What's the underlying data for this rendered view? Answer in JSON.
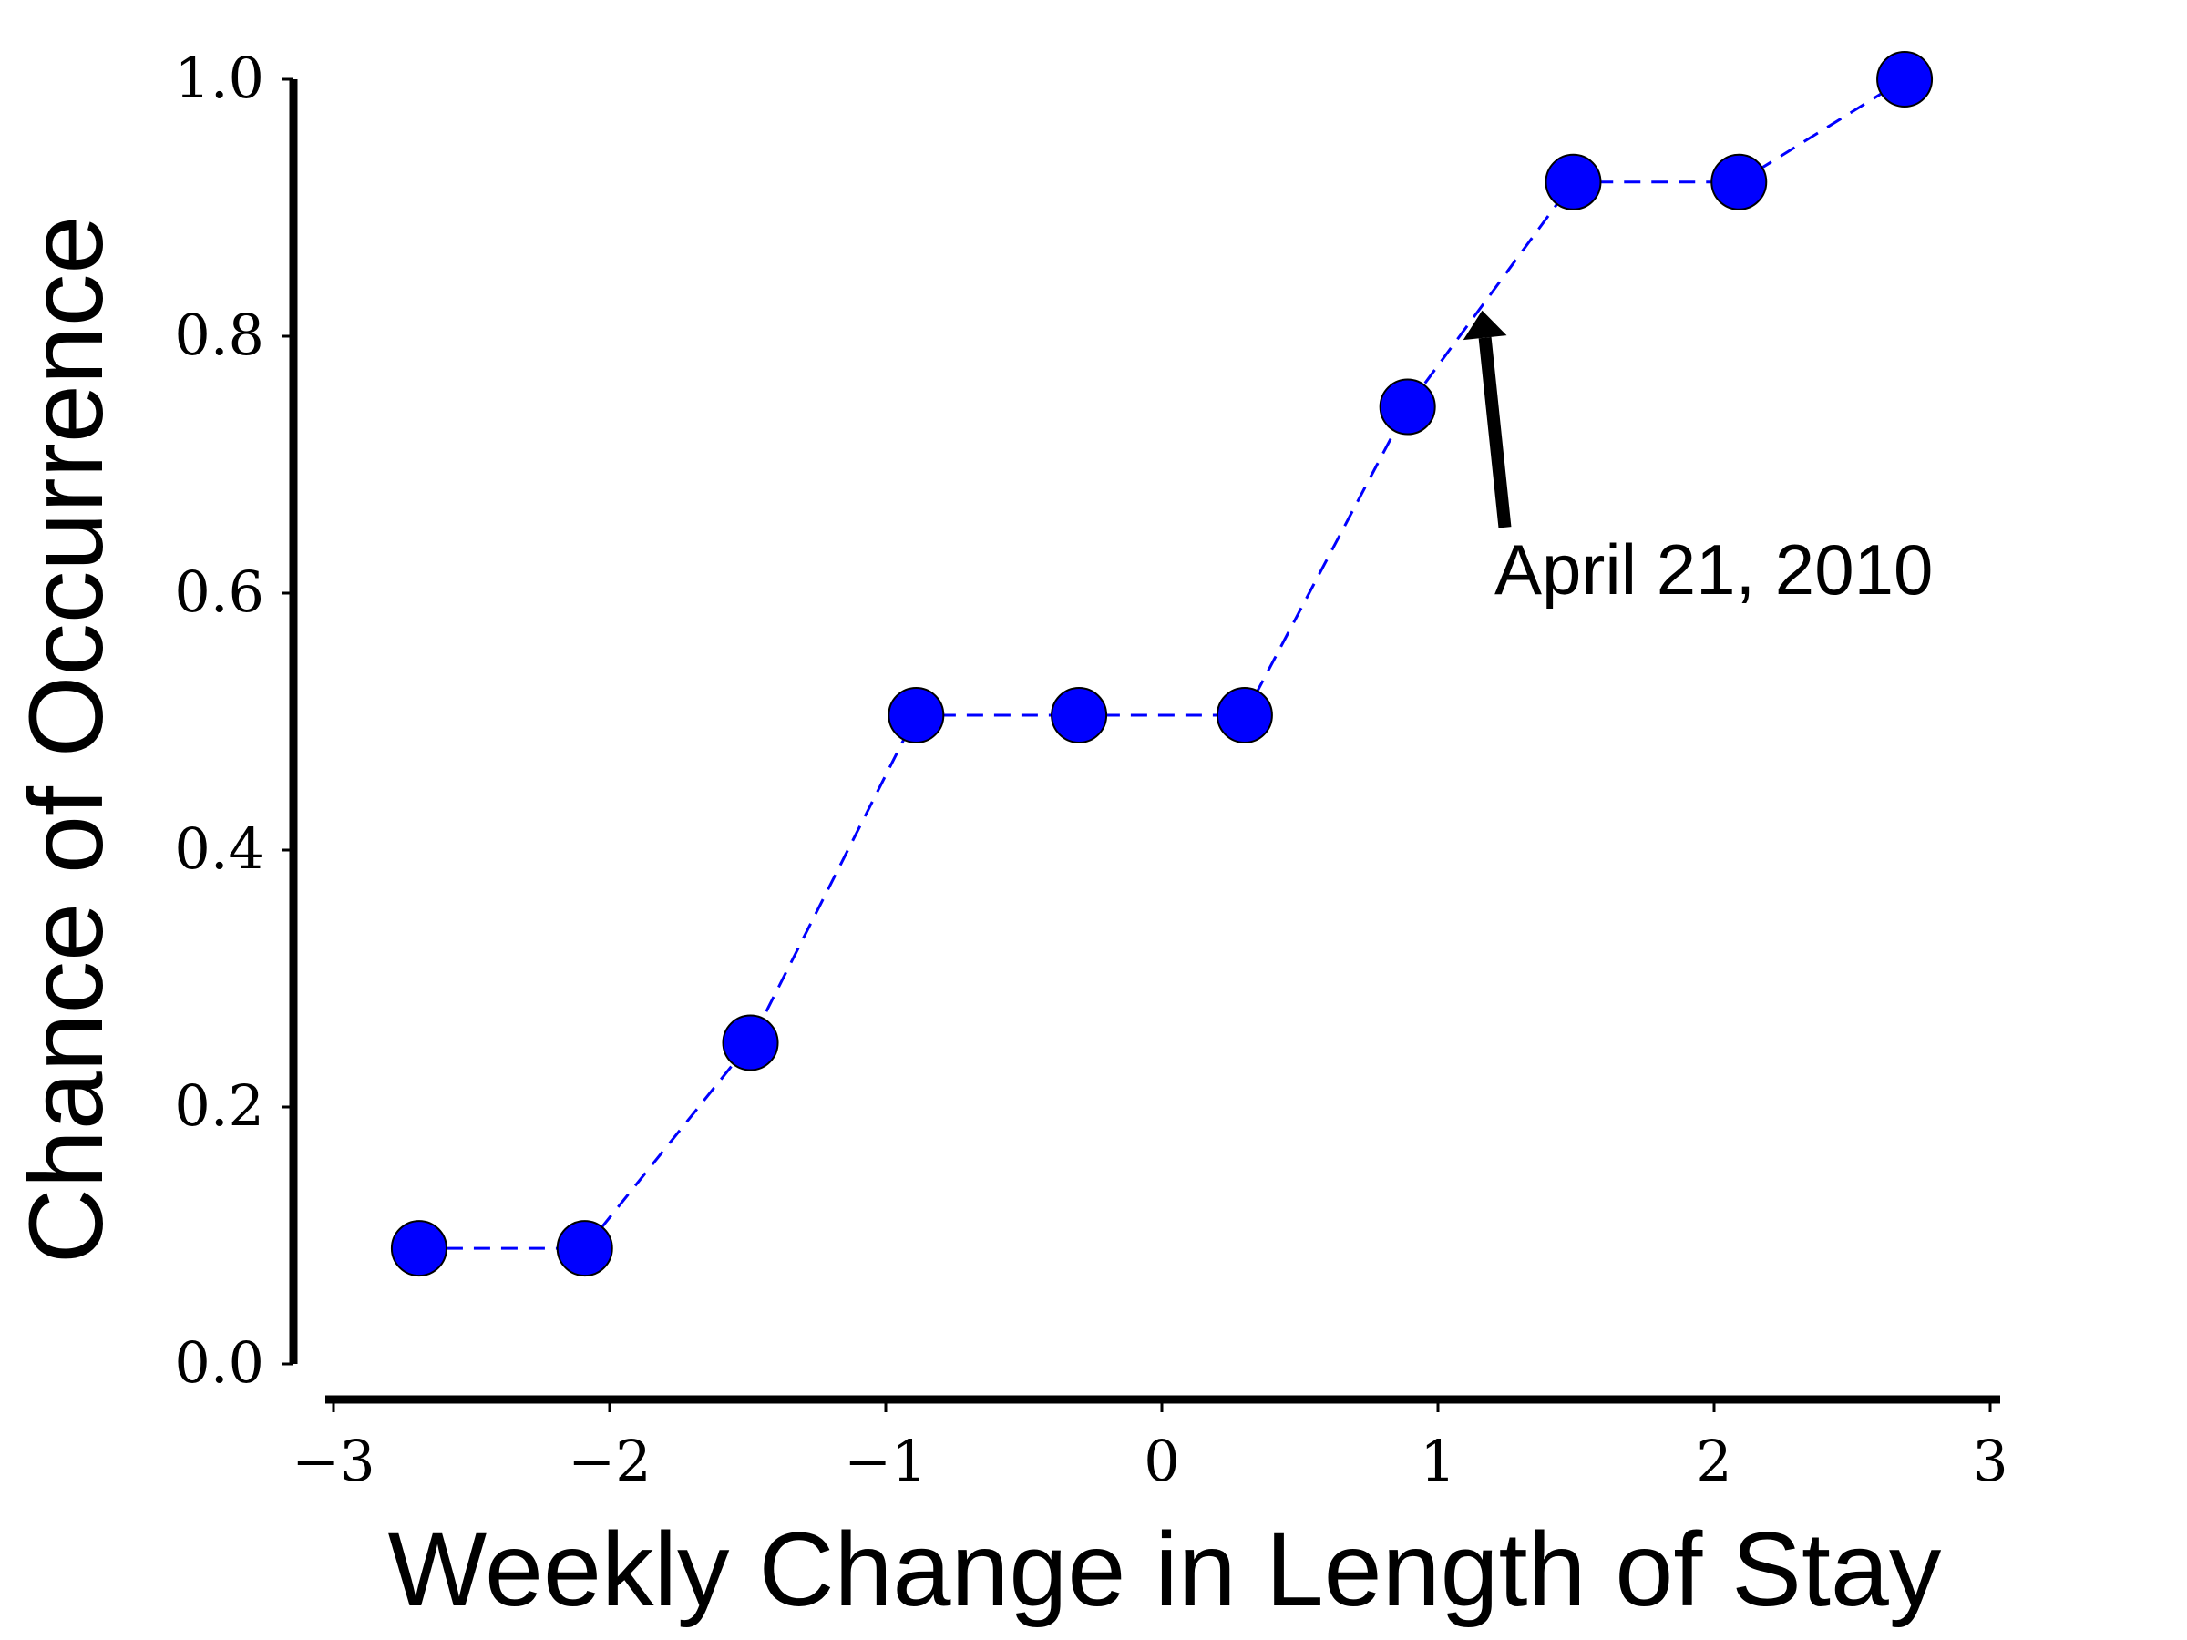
{
  "chart_data": {
    "type": "line",
    "title": "",
    "xlabel": "Weekly Change in Length of Stay",
    "ylabel": "Chance of Occurrence",
    "xlim": [
      -3,
      3
    ],
    "ylim": [
      0,
      1
    ],
    "xticks": [
      -3,
      -2,
      -1,
      0,
      1,
      2,
      3
    ],
    "xtick_labels": [
      "−3",
      "−2",
      "−1",
      "0",
      "1",
      "2",
      "3"
    ],
    "yticks": [
      0,
      0.2,
      0.4,
      0.6,
      0.8,
      1.0
    ],
    "ytick_labels": [
      "0.0",
      "0.2",
      "0.4",
      "0.6",
      "0.8",
      "1.0"
    ],
    "grid": false,
    "legend": "none",
    "series": [
      {
        "x": [
          -2.69,
          -2.09,
          -1.49,
          -0.89,
          -0.3,
          0.3,
          0.89,
          1.49,
          2.09,
          2.69
        ],
        "y": [
          0.09,
          0.09,
          0.25,
          0.505,
          0.505,
          0.505,
          0.745,
          0.92,
          0.92,
          1.0
        ],
        "color": "#0000ff",
        "line_style": "dashed",
        "marker": "circle",
        "marker_edge_color": "#000000"
      }
    ],
    "annotations": [
      {
        "text": "April 21, 2010",
        "arrow_target": [
          1.16,
          0.82
        ]
      }
    ]
  }
}
